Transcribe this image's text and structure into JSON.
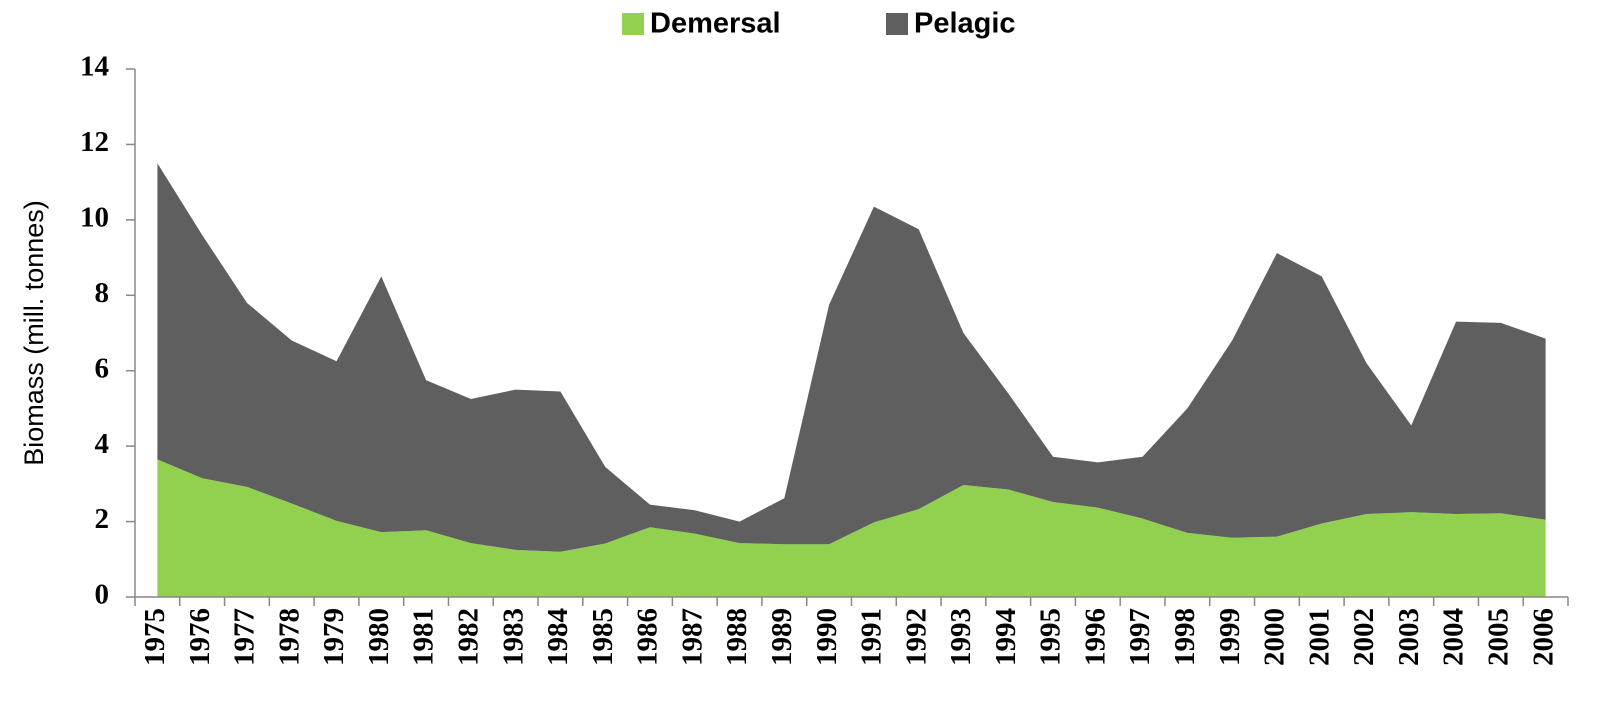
{
  "chart_data": {
    "type": "stacked_area",
    "y_label": "Biomass (mill. tonnes)",
    "categories": [
      "1975",
      "1976",
      "1977",
      "1978",
      "1979",
      "1980",
      "1981",
      "1982",
      "1983",
      "1984",
      "1985",
      "1986",
      "1987",
      "1988",
      "1989",
      "1990",
      "1991",
      "1992",
      "1993",
      "1994",
      "1995",
      "1996",
      "1997",
      "1998",
      "1999",
      "2000",
      "2001",
      "2002",
      "2003",
      "2004",
      "2005",
      "2006"
    ],
    "series": [
      {
        "name": "Demersal",
        "color": "#92d050",
        "values": [
          3.65,
          3.15,
          2.92,
          2.48,
          2.02,
          1.72,
          1.77,
          1.43,
          1.25,
          1.2,
          1.42,
          1.85,
          1.68,
          1.43,
          1.4,
          1.4,
          1.98,
          2.33,
          2.97,
          2.85,
          2.52,
          2.37,
          2.08,
          1.7,
          1.57,
          1.6,
          1.95,
          2.2,
          2.25,
          2.2,
          2.22,
          2.05
        ]
      },
      {
        "name": "Pelagic",
        "color": "#5f5f5f",
        "values": [
          7.85,
          6.45,
          4.88,
          4.32,
          4.23,
          6.78,
          3.98,
          3.82,
          4.25,
          4.25,
          2.03,
          0.6,
          0.62,
          0.57,
          1.22,
          6.35,
          8.37,
          7.42,
          4.03,
          2.55,
          1.2,
          1.2,
          1.64,
          3.3,
          5.23,
          7.52,
          6.55,
          4.0,
          2.3,
          5.1,
          5.05,
          4.8
        ]
      }
    ],
    "ylim": [
      0,
      14
    ],
    "yticks": [
      0,
      2,
      4,
      6,
      8,
      10,
      12,
      14
    ],
    "legend": "top"
  }
}
